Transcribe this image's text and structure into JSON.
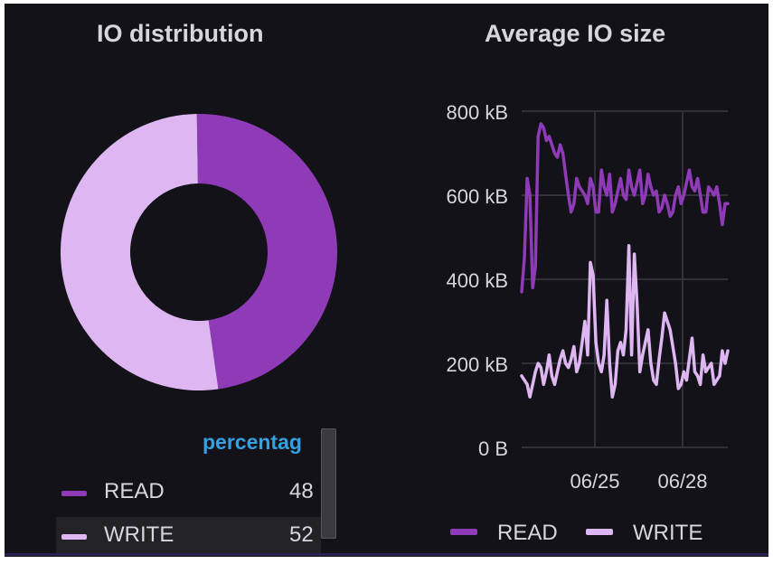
{
  "io_distribution": {
    "title": "IO distribution",
    "legend_header": "percentag",
    "rows": [
      {
        "label": "READ",
        "value": "48"
      },
      {
        "label": "WRITE",
        "value": "52"
      }
    ]
  },
  "average_io_size": {
    "title": "Average IO size",
    "legend": [
      "READ",
      "WRITE"
    ]
  },
  "colors": {
    "read": "#8f3bb8",
    "write": "#deb6f2",
    "background": "#121218",
    "grid": "#3b3b42",
    "text": "#d6d6dc",
    "legend_header": "#33a2e5"
  },
  "chart_data": [
    {
      "type": "pie",
      "style": "donut",
      "title": "IO distribution",
      "categories": [
        "READ",
        "WRITE"
      ],
      "values": [
        48,
        52
      ],
      "legend_placement": "bottom"
    },
    {
      "type": "line",
      "title": "Average IO size",
      "x_ticks": [
        "06/25",
        "06/28"
      ],
      "y_ticks": [
        "0 B",
        "200 kB",
        "400 kB",
        "600 kB",
        "800 kB"
      ],
      "ylim": [
        0,
        800
      ],
      "y_unit": "kB",
      "grid": true,
      "legend_placement": "bottom",
      "series": [
        {
          "name": "READ",
          "values": [
            370,
            450,
            640,
            600,
            380,
            430,
            740,
            770,
            760,
            730,
            740,
            720,
            700,
            690,
            720,
            700,
            650,
            600,
            560,
            580,
            640,
            620,
            610,
            600,
            580,
            640,
            620,
            560,
            560,
            660,
            620,
            600,
            650,
            560,
            580,
            610,
            640,
            600,
            590,
            660,
            620,
            600,
            630,
            660,
            580,
            600,
            650,
            620,
            600,
            610,
            560,
            570,
            600,
            580,
            550,
            560,
            600,
            620,
            580,
            600,
            630,
            660,
            620,
            610,
            640,
            600,
            560,
            560,
            620,
            610,
            600,
            620,
            580,
            530,
            580,
            580
          ]
        },
        {
          "name": "WRITE",
          "values": [
            170,
            160,
            150,
            120,
            150,
            180,
            200,
            190,
            150,
            180,
            220,
            170,
            150,
            180,
            210,
            230,
            200,
            190,
            210,
            240,
            180,
            200,
            250,
            300,
            220,
            440,
            410,
            250,
            200,
            180,
            220,
            350,
            200,
            120,
            150,
            230,
            250,
            220,
            280,
            480,
            220,
            460,
            340,
            180,
            220,
            250,
            280,
            200,
            160,
            150,
            210,
            260,
            320,
            300,
            280,
            240,
            200,
            140,
            150,
            180,
            160,
            210,
            260,
            180,
            170,
            150,
            220,
            180,
            190,
            200,
            150,
            160,
            170,
            230,
            200,
            230
          ]
        }
      ]
    }
  ]
}
